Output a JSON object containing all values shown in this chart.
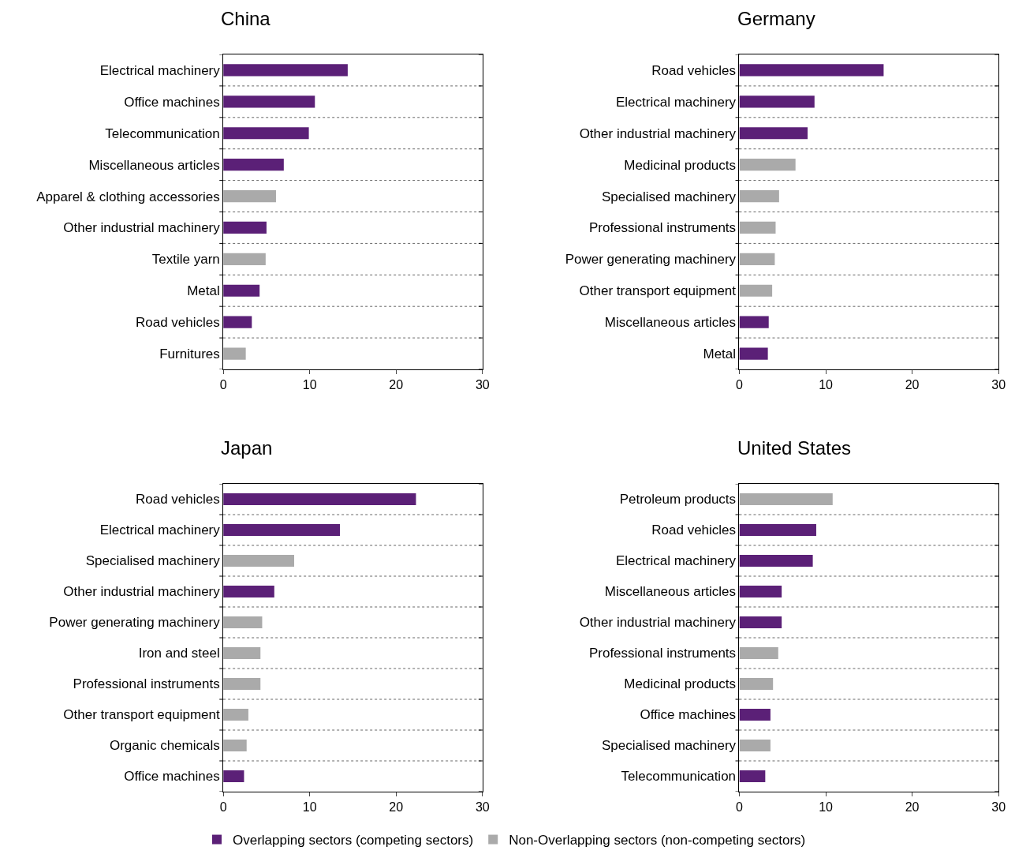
{
  "chart_data": [
    {
      "type": "bar",
      "orientation": "horizontal",
      "title": "China",
      "categories": [
        "Electrical machinery",
        "Office machines",
        "Telecommunication",
        "Miscellaneous articles",
        "Apparel & clothing accessories",
        "Other industrial machinery",
        "Textile yarn",
        "Metal",
        "Road vehicles",
        "Furnitures"
      ],
      "series": [
        {
          "name": "Overlapping sectors (competing sectors)",
          "color": "#5b2077",
          "values": [
            14.4,
            10.6,
            9.9,
            7.0,
            null,
            5.0,
            null,
            4.2,
            3.3,
            null
          ]
        },
        {
          "name": "Non-Overlapping sectors (non-competing sectors)",
          "color": "#aaaaaa",
          "values": [
            null,
            null,
            null,
            null,
            6.1,
            null,
            4.9,
            null,
            null,
            2.6
          ]
        }
      ],
      "xlim": [
        0,
        30
      ],
      "xticks": [
        0,
        10,
        20,
        30
      ],
      "grid": "y",
      "legend": "bottom"
    },
    {
      "type": "bar",
      "orientation": "horizontal",
      "title": "Germany",
      "categories": [
        "Road vehicles",
        "Electrical machinery",
        "Other industrial machinery",
        "Medicinal products",
        "Specialised machinery",
        "Professional instruments",
        "Power generating machinery",
        "Other transport equipment",
        "Miscellaneous articles",
        "Metal"
      ],
      "series": [
        {
          "name": "Overlapping sectors (competing sectors)",
          "color": "#5b2077",
          "values": [
            16.7,
            8.7,
            7.9,
            null,
            null,
            null,
            null,
            null,
            3.4,
            3.3
          ]
        },
        {
          "name": "Non-Overlapping sectors (non-competing sectors)",
          "color": "#aaaaaa",
          "values": [
            null,
            null,
            null,
            6.5,
            4.6,
            4.2,
            4.1,
            3.8,
            null,
            null
          ]
        }
      ],
      "xlim": [
        0,
        30
      ],
      "xticks": [
        0,
        10,
        20,
        30
      ],
      "grid": "y",
      "legend": "bottom"
    },
    {
      "type": "bar",
      "orientation": "horizontal",
      "title": "Japan",
      "categories": [
        "Road vehicles",
        "Electrical machinery",
        "Specialised machinery",
        "Other industrial machinery",
        "Power generating machinery",
        "Iron and steel",
        "Professional instruments",
        "Other transport equipment",
        "Organic chemicals",
        "Office machines"
      ],
      "series": [
        {
          "name": "Overlapping sectors (competing sectors)",
          "color": "#5b2077",
          "values": [
            22.3,
            13.5,
            null,
            5.9,
            null,
            null,
            null,
            null,
            null,
            2.4
          ]
        },
        {
          "name": "Non-Overlapping sectors (non-competing sectors)",
          "color": "#aaaaaa",
          "values": [
            null,
            null,
            8.2,
            null,
            4.5,
            4.3,
            4.3,
            2.9,
            2.7,
            null
          ]
        }
      ],
      "xlim": [
        0,
        30
      ],
      "xticks": [
        0,
        10,
        20,
        30
      ],
      "grid": "y",
      "legend": "bottom"
    },
    {
      "type": "bar",
      "orientation": "horizontal",
      "title": "United States",
      "categories": [
        "Petroleum products",
        "Road vehicles",
        "Electrical machinery",
        "Miscellaneous articles",
        "Other industrial machinery",
        "Professional instruments",
        "Medicinal products",
        "Office machines",
        "Specialised machinery",
        "Telecommunication"
      ],
      "series": [
        {
          "name": "Overlapping sectors (competing sectors)",
          "color": "#5b2077",
          "values": [
            null,
            8.9,
            8.5,
            4.9,
            4.9,
            null,
            null,
            3.6,
            null,
            3.0
          ]
        },
        {
          "name": "Non-Overlapping sectors (non-competing sectors)",
          "color": "#aaaaaa",
          "values": [
            10.8,
            null,
            null,
            null,
            null,
            4.5,
            3.9,
            null,
            3.6,
            null
          ]
        }
      ],
      "xlim": [
        0,
        30
      ],
      "xticks": [
        0,
        10,
        20,
        30
      ],
      "grid": "y",
      "legend": "bottom"
    }
  ]
}
